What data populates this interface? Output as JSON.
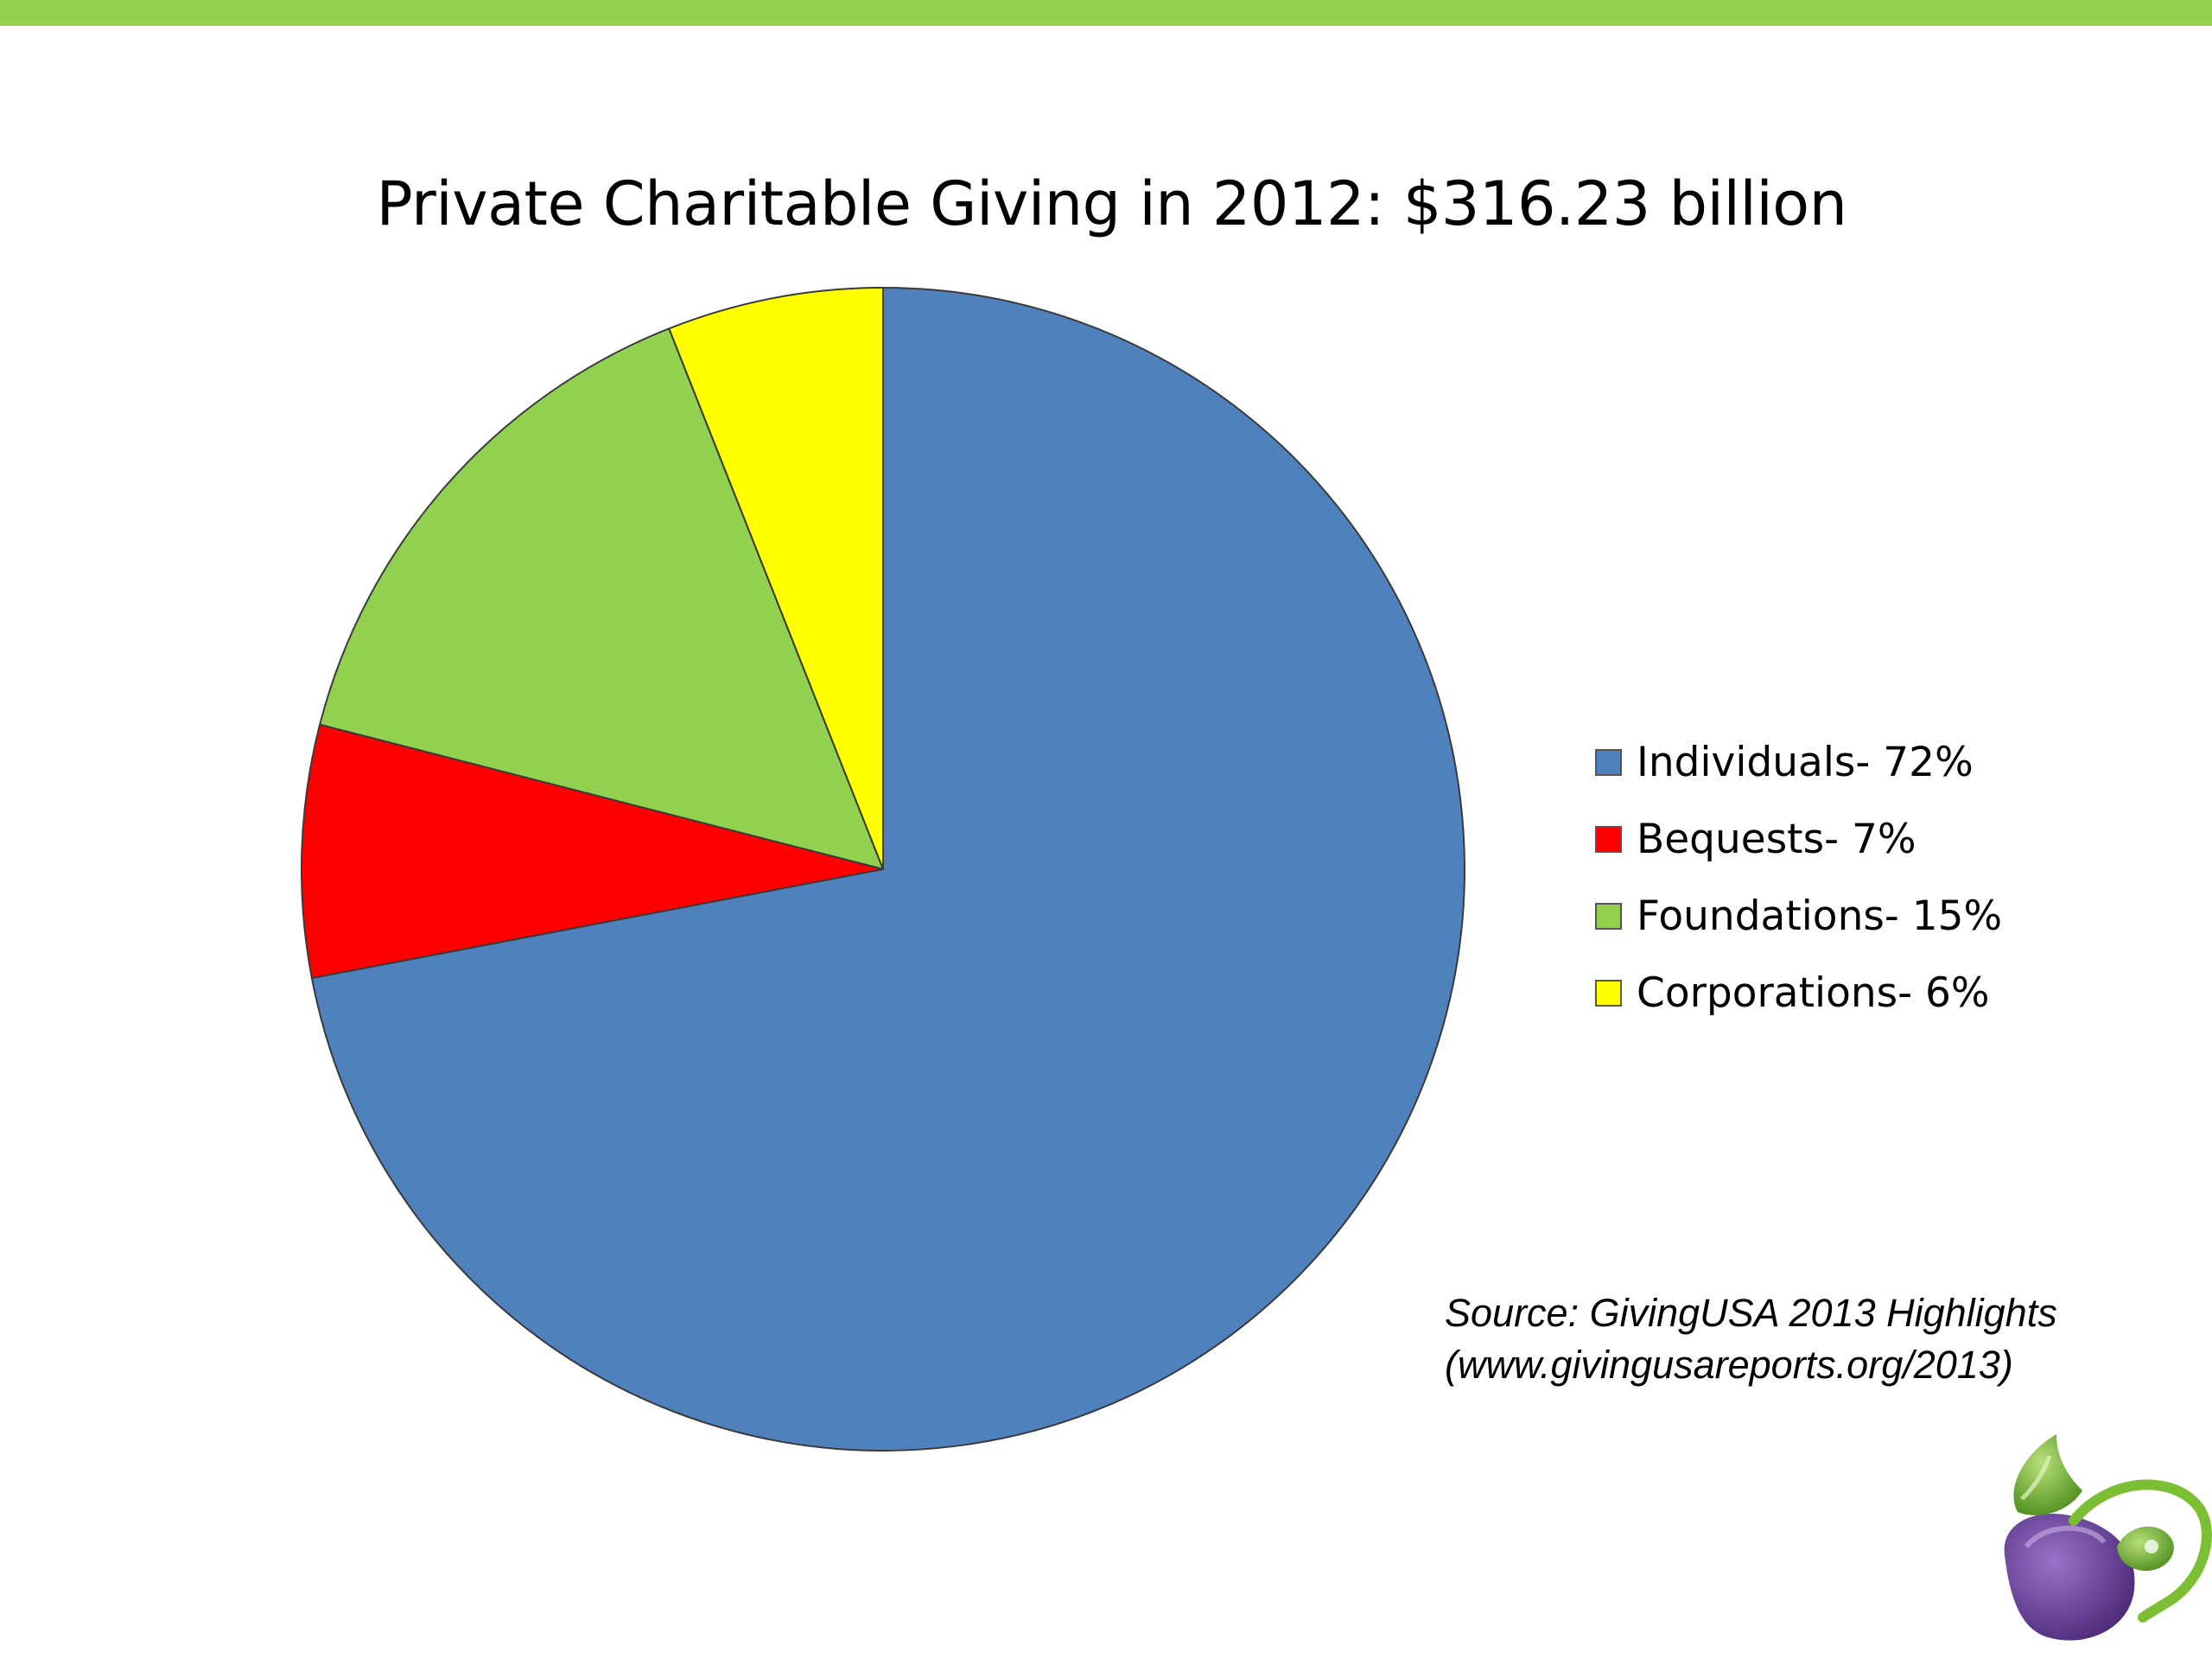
{
  "colors": {
    "top_bar": "#92d050",
    "pie_outline": "#3a3a3a"
  },
  "chart_data": {
    "type": "pie",
    "title": "Private Charitable Giving in 2012: $316.23 billion",
    "start_angle_deg": 0,
    "direction": "clockwise",
    "legend_position": "right",
    "slices": [
      {
        "label": "Individuals- 72%",
        "value": 72,
        "color": "#4f81bd"
      },
      {
        "label": "Bequests- 7%",
        "value": 7,
        "color": "#ff0000"
      },
      {
        "label": "Foundations- 15%",
        "value": 15,
        "color": "#92d050"
      },
      {
        "label": "Corporations- 6%",
        "value": 6,
        "color": "#ffff00"
      }
    ]
  },
  "source": {
    "line1": "Source: GivingUSA 2013 Highlights",
    "line2": "(www.givingusareports.org/2013)"
  },
  "logo": {
    "icon": "sprout-on-plum-icon",
    "leaf_color": "#6aa82e",
    "plum_color": "#6b3fa0"
  }
}
